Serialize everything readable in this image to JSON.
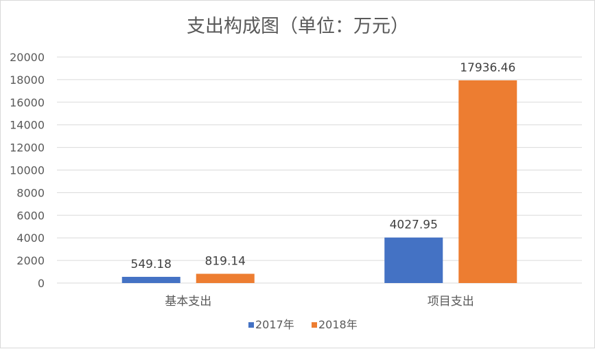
{
  "chart_data": {
    "type": "bar",
    "title": "支出构成图（单位：万元）",
    "xlabel": "",
    "ylabel": "",
    "categories": [
      "基本支出",
      "项目支出"
    ],
    "series": [
      {
        "name": "2017年",
        "values": [
          549.18,
          4027.95
        ],
        "labels": [
          "549.18",
          "4027.95"
        ],
        "color": "#4472c4"
      },
      {
        "name": "2018年",
        "values": [
          819.14,
          17936.46
        ],
        "labels": [
          "819.14",
          "17936.46"
        ],
        "color": "#ed7d31"
      }
    ],
    "ylim": [
      0,
      20000
    ],
    "yticks": [
      0,
      2000,
      4000,
      6000,
      8000,
      10000,
      12000,
      14000,
      16000,
      18000,
      20000
    ],
    "grid": true,
    "legend": "bottom"
  },
  "colors": {
    "gridline": "#d9d9d9",
    "axis": "#d9d9d9",
    "text": "#595959"
  }
}
